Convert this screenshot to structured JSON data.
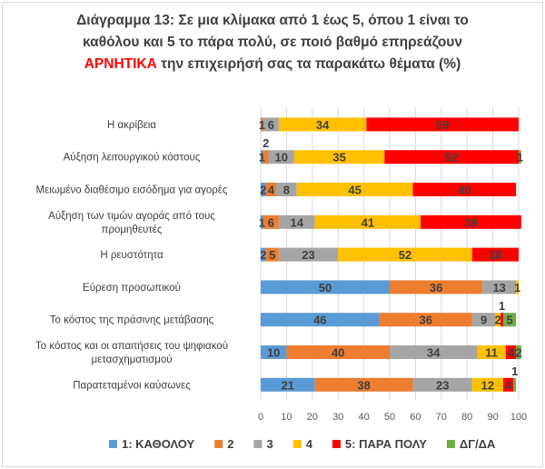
{
  "chart_data": {
    "type": "bar",
    "stacked": true,
    "orientation": "horizontal",
    "title_line1": "Διάγραμμα 13: Σε μια κλίμακα από 1 έως 5, όπου 1 είναι το",
    "title_line2": "καθόλου και 5 το πάρα πολύ, σε ποιό βαθμό επηρεάζουν",
    "title_highlight": "ΑΡΝΗΤΙΚΑ",
    "title_line3_rest": " την επιχειρήσή σας τα παρακάτω θέματα (%)",
    "categories": [
      [
        "Η ακρίβεια"
      ],
      [
        "Αύξηση λειτουργικού κόστους"
      ],
      [
        "Μειωμένο διαθέσιμο εισόδημα για αγορές"
      ],
      [
        "Αύξηση των τιμών αγοράς από τους",
        "προμηθευτές"
      ],
      [
        "Η ρευστότητα"
      ],
      [
        "Εύρεση προσωπικού"
      ],
      [
        "Το κόστος της πράσινης μετάβασης"
      ],
      [
        "Το κόστος και οι απαιτήσεις  του ψηφιακού",
        "μετασχηματισμού"
      ],
      [
        "Παρατεταμένοι καύσωνες"
      ]
    ],
    "series": [
      {
        "name": "1: ΚΑΘΟΛΟΥ",
        "color": "#5b9bd5",
        "values": [
          0,
          1,
          2,
          1,
          2,
          50,
          46,
          10,
          21
        ]
      },
      {
        "name": "2",
        "color": "#ed7d31",
        "values": [
          1,
          2,
          4,
          6,
          5,
          36,
          36,
          40,
          38
        ]
      },
      {
        "name": "3",
        "color": "#a5a5a5",
        "values": [
          6,
          10,
          8,
          14,
          23,
          13,
          9,
          34,
          23
        ]
      },
      {
        "name": "4",
        "color": "#ffc000",
        "values": [
          34,
          35,
          45,
          41,
          52,
          1,
          2,
          11,
          12
        ]
      },
      {
        "name": "5: ΠΑΡΑ ΠΟΛΥ",
        "color": "#ff0000",
        "values": [
          59,
          52,
          40,
          39,
          18,
          0,
          1,
          4,
          4
        ]
      },
      {
        "name": "ΔΓ/ΔΑ",
        "color": "#70ad47",
        "values": [
          0,
          1,
          0,
          0,
          0,
          0,
          5,
          2,
          1
        ]
      }
    ],
    "xlim": [
      0,
      100
    ],
    "xticks": [
      "0",
      "10",
      "20",
      "30",
      "40",
      "50",
      "60",
      "70",
      "80",
      "90",
      "100"
    ],
    "legend_position": "bottom",
    "grid": true
  }
}
